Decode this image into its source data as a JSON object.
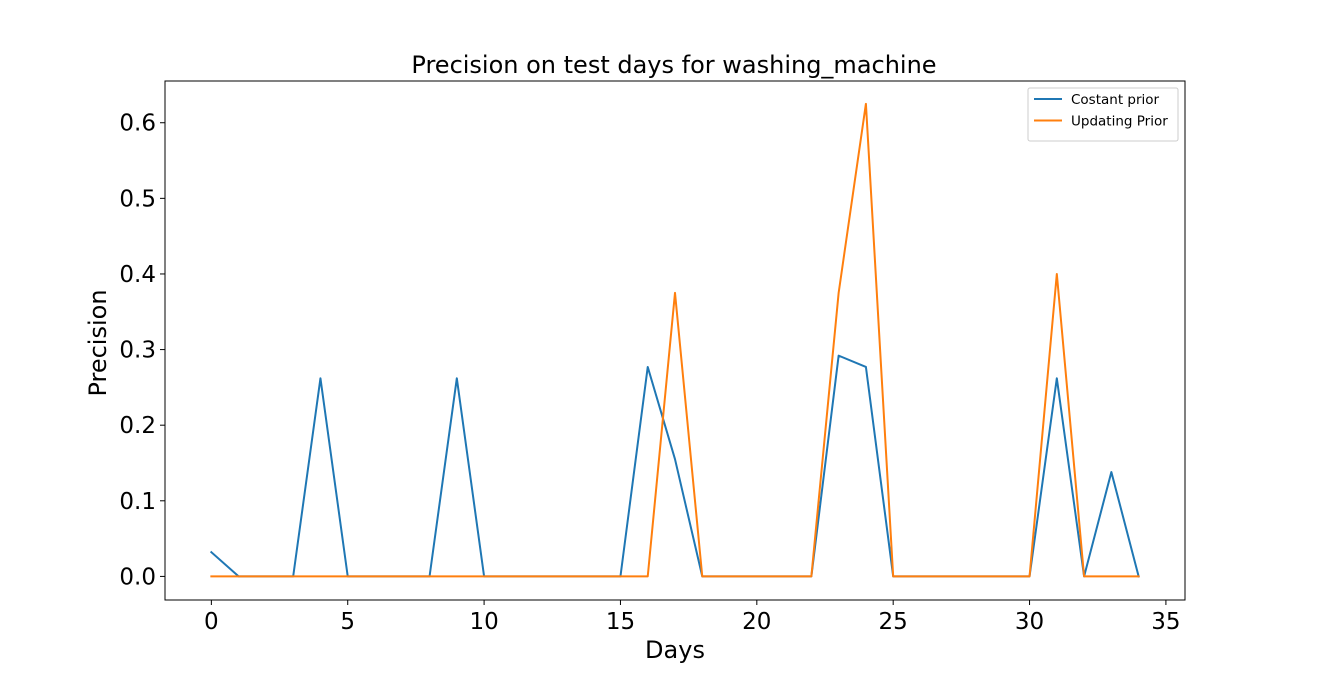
{
  "chart_data": {
    "type": "line",
    "title": "Precision on test days for washing_machine",
    "xlabel": "Days",
    "ylabel": "Precision",
    "xlim": [
      -1.7,
      35.7
    ],
    "ylim": [
      -0.0312,
      0.6552
    ],
    "xticks": [
      0,
      5,
      10,
      15,
      20,
      25,
      30,
      35
    ],
    "yticks": [
      0.0,
      0.1,
      0.2,
      0.3,
      0.4,
      0.5,
      0.6
    ],
    "xtick_labels": [
      "0",
      "5",
      "10",
      "15",
      "20",
      "25",
      "30",
      "35"
    ],
    "ytick_labels": [
      "0.0",
      "0.1",
      "0.2",
      "0.3",
      "0.4",
      "0.5",
      "0.6"
    ],
    "grid": false,
    "legend_position": "top-right",
    "x": [
      0,
      1,
      2,
      3,
      4,
      5,
      6,
      7,
      8,
      9,
      10,
      11,
      12,
      13,
      14,
      15,
      16,
      17,
      18,
      19,
      20,
      21,
      22,
      23,
      24,
      25,
      26,
      27,
      28,
      29,
      30,
      31,
      32,
      33,
      34
    ],
    "series": [
      {
        "name": "Costant prior",
        "color": "#1f77b4",
        "values": [
          0.032,
          0,
          0,
          0,
          0.262,
          0,
          0,
          0,
          0,
          0.262,
          0,
          0,
          0,
          0,
          0,
          0,
          0.277,
          0.155,
          0,
          0,
          0,
          0,
          0,
          0.292,
          0.277,
          0,
          0,
          0,
          0,
          0,
          0,
          0.262,
          0,
          0.138,
          0
        ]
      },
      {
        "name": "Updating Prior",
        "color": "#ff7f0e",
        "values": [
          0,
          0,
          0,
          0,
          0,
          0,
          0,
          0,
          0,
          0,
          0,
          0,
          0,
          0,
          0,
          0,
          0,
          0.375,
          0,
          0,
          0,
          0,
          0,
          0.375,
          0.625,
          0,
          0,
          0,
          0,
          0,
          0,
          0.4,
          0,
          0,
          0
        ]
      }
    ]
  }
}
